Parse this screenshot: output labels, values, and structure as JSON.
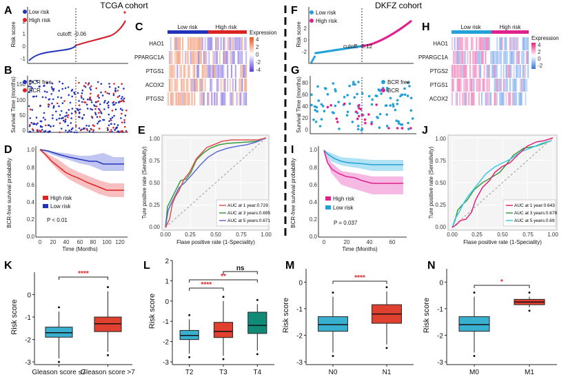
{
  "titles": {
    "left": "TCGA cohort",
    "right": "DKFZ cohort"
  },
  "panel_letters": [
    "A",
    "B",
    "C",
    "D",
    "E",
    "F",
    "G",
    "H",
    "I",
    "J",
    "K",
    "L",
    "M",
    "N"
  ],
  "colors": {
    "low": "#2233bb",
    "high": "#dd2222",
    "low_dkfz": "#22a0d8",
    "high_dkfz": "#e0208c",
    "box_blue": "#3ab0d0",
    "box_red": "#e04030",
    "box_teal": "#128a78",
    "sig": "#e02020"
  },
  "chart_data": [
    {
      "id": "A",
      "type": "scatter",
      "ylabel": "Risk score",
      "yticks": [
        "-1",
        "0",
        "1",
        "2"
      ],
      "legend": [
        "Low risk",
        "High risk"
      ],
      "cutoff_label": "cutoff: -0.06"
    },
    {
      "id": "B",
      "type": "scatter",
      "ylabel": "Survival Time (months)",
      "yticks": [
        "0",
        "50",
        "100",
        "150"
      ],
      "legend": [
        "BCR free",
        "BCR"
      ]
    },
    {
      "id": "C",
      "type": "heatmap",
      "genes": [
        "HAO1",
        "PPARGC1A",
        "PTGS1",
        "ACOX2",
        "PTGS2"
      ],
      "groups": [
        "Low risk",
        "High risk"
      ],
      "legend_title": "Expression",
      "legend_ticks": [
        "4",
        "2",
        "0",
        "-2",
        "-4"
      ]
    },
    {
      "id": "D",
      "type": "line",
      "ylabel": "BCR-free survival probability",
      "xlabel": "Time (Months)",
      "xticks": [
        "0",
        "20",
        "40",
        "60",
        "80",
        "100",
        "120"
      ],
      "yticks": [
        "0.0",
        "0.2",
        "0.4",
        "0.6",
        "0.8",
        "1.0"
      ],
      "legend": [
        "High risk",
        "Low risk"
      ],
      "pvalue": "P < 0.01"
    },
    {
      "id": "E",
      "type": "line",
      "ylabel": "Ture positive rate (Sensitivity)",
      "xlabel": "Flase positive rate (1-Speciality)",
      "xticks": [
        "0.00",
        "0.25",
        "0.50",
        "0.75",
        "1.00"
      ],
      "yticks": [
        "0.00",
        "0.25",
        "0.50",
        "0.75",
        "1.00"
      ],
      "series": [
        {
          "name": "AUC at 1 year:0.729"
        },
        {
          "name": "AUC at 3 years:0.695"
        },
        {
          "name": "AUC at 5 years:0.671"
        }
      ]
    },
    {
      "id": "F",
      "type": "scatter",
      "ylabel": "Risk score",
      "yticks": [
        "-2",
        "0",
        "2"
      ],
      "legend": [
        "Low risk",
        "High risk"
      ],
      "cutoff_label": "cutoff: -0.12"
    },
    {
      "id": "G",
      "type": "scatter",
      "ylabel": "Survival Time (months)",
      "yticks": [
        "0",
        "20",
        "40",
        "60",
        "80"
      ],
      "legend": [
        "BCR free",
        "BCR"
      ]
    },
    {
      "id": "H",
      "type": "heatmap",
      "genes": [
        "HAO1",
        "PPARGC1A",
        "PTGS2",
        "PTGS1",
        "ACOX2"
      ],
      "groups": [
        "Low risk",
        "High risk"
      ],
      "legend_title": "Expression",
      "legend_ticks": [
        "4",
        "2",
        "0",
        "-2"
      ]
    },
    {
      "id": "I",
      "type": "line",
      "ylabel": "BCR-free survival probability",
      "xlabel": "Time (Months)",
      "xticks": [
        "0",
        "20",
        "40",
        "60"
      ],
      "yticks": [
        "0.0",
        "0.2",
        "0.4",
        "0.6",
        "0.8",
        "1.0"
      ],
      "legend": [
        "High risk",
        "Low risk"
      ],
      "pvalue": "P = 0.037"
    },
    {
      "id": "J",
      "type": "line",
      "ylabel": "Ture positive rate (Sensitivity)",
      "xlabel": "Flase positive rate (1-Speciality)",
      "xticks": [
        "0.00",
        "0.25",
        "0.50",
        "0.75",
        "1.00"
      ],
      "yticks": [
        "0.00",
        "0.25",
        "0.50",
        "0.75",
        "1.00"
      ],
      "series": [
        {
          "name": "AUC at 1 year:0.643"
        },
        {
          "name": "AUC at 3 years:0.678"
        },
        {
          "name": "AUC at 5 years:0.69"
        }
      ]
    },
    {
      "id": "K",
      "type": "box",
      "ylabel": "Risk score",
      "ylim": [
        -3,
        1
      ],
      "yticks": [
        "-3",
        "-2",
        "-1",
        "0"
      ],
      "categories": [
        "Gleason score ≤7",
        "Gleason score >7"
      ],
      "boxes": [
        {
          "q1": -1.9,
          "med": -1.7,
          "q3": -1.45,
          "lo": -2.85,
          "hi": -0.75
        },
        {
          "q1": -1.65,
          "med": -1.3,
          "q3": -1.0,
          "lo": -2.55,
          "hi": 0.15
        }
      ],
      "significance": [
        {
          "label": "****"
        }
      ]
    },
    {
      "id": "L",
      "type": "box",
      "ylabel": "Risk score",
      "ylim": [
        -3,
        2
      ],
      "yticks": [
        "-3",
        "-2",
        "-1",
        "0",
        "1",
        "2"
      ],
      "categories": [
        "T2",
        "T3",
        "T4"
      ],
      "boxes": [
        {
          "q1": -1.9,
          "med": -1.7,
          "q3": -1.45,
          "lo": -2.6,
          "hi": -0.9
        },
        {
          "q1": -1.8,
          "med": -1.5,
          "q3": -1.05,
          "lo": -2.7,
          "hi": 0.0
        },
        {
          "q1": -1.6,
          "med": -1.2,
          "q3": -0.55,
          "lo": -2.45,
          "hi": -0.15
        }
      ],
      "significance": [
        {
          "label": "****"
        },
        {
          "label": "**"
        },
        {
          "label": "ns"
        }
      ]
    },
    {
      "id": "M",
      "type": "box",
      "ylabel": "Risk score",
      "ylim": [
        -3,
        0.5
      ],
      "yticks": [
        "-3",
        "-2",
        "-1",
        "0"
      ],
      "categories": [
        "N0",
        "N1"
      ],
      "boxes": [
        {
          "q1": -1.85,
          "med": -1.6,
          "q3": -1.3,
          "lo": -2.65,
          "hi": -0.55
        },
        {
          "q1": -1.55,
          "med": -1.2,
          "q3": -0.85,
          "lo": -2.35,
          "hi": -0.35
        }
      ],
      "significance": [
        {
          "label": "****"
        }
      ]
    },
    {
      "id": "N",
      "type": "box",
      "ylabel": "Risk score",
      "ylim": [
        -3,
        0.5
      ],
      "yticks": [
        "-3",
        "-2",
        "-1",
        "0"
      ],
      "categories": [
        "M0",
        "M1"
      ],
      "boxes": [
        {
          "q1": -1.85,
          "med": -1.6,
          "q3": -1.3,
          "lo": -2.65,
          "hi": -0.55
        },
        {
          "q1": -0.85,
          "med": -0.75,
          "q3": -0.65,
          "lo": -0.95,
          "hi": -0.55
        }
      ],
      "significance": [
        {
          "label": "*"
        }
      ]
    }
  ]
}
